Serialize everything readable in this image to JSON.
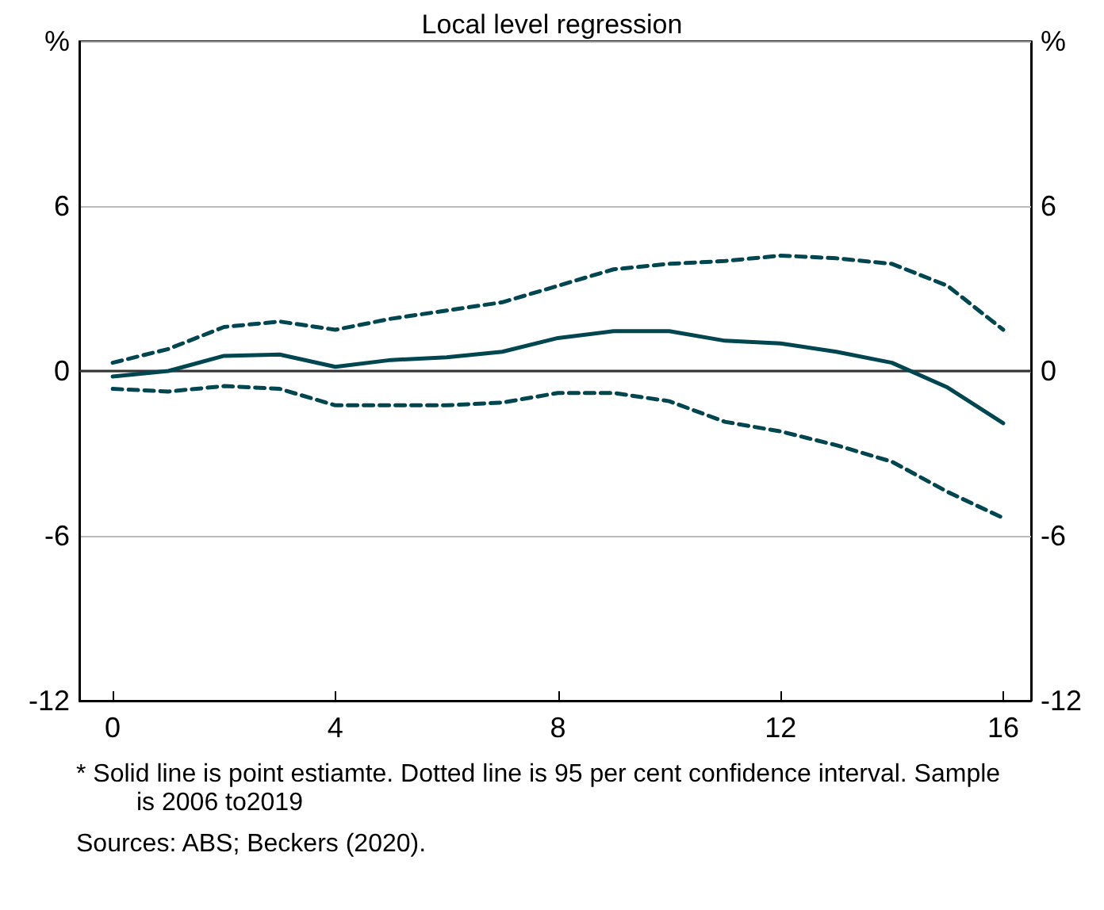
{
  "chart_data": {
    "type": "line",
    "title": "Local level regression",
    "x": [
      0,
      1,
      2,
      3,
      4,
      5,
      6,
      7,
      8,
      9,
      10,
      11,
      12,
      13,
      14,
      15,
      16
    ],
    "series": [
      {
        "color": "#004650",
        "line_style": "solid",
        "values": [
          -0.2,
          0,
          0.55,
          0.6,
          0.15,
          0.4,
          0.5,
          0.7,
          1.2,
          1.45,
          1.45,
          1.1,
          1.0,
          0.7,
          0.3,
          -0.6,
          -1.9
        ]
      },
      {
        "color": "#004650",
        "line_style": "dashed",
        "values": [
          0.3,
          0.8,
          1.6,
          1.8,
          1.5,
          1.9,
          2.2,
          2.5,
          3.1,
          3.7,
          3.9,
          4.0,
          4.2,
          4.1,
          3.9,
          3.1,
          1.5
        ]
      },
      {
        "color": "#004650",
        "line_style": "dashed",
        "values": [
          -0.65,
          -0.75,
          -0.55,
          -0.65,
          -1.25,
          -1.25,
          -1.25,
          -1.15,
          -0.8,
          -0.8,
          -1.1,
          -1.85,
          -2.2,
          -2.7,
          -3.3,
          -4.4,
          -5.35
        ]
      }
    ],
    "xlim": [
      -0.6,
      16.5
    ],
    "xticks": [
      0,
      4,
      8,
      12,
      16
    ],
    "ylim": [
      -12,
      12
    ],
    "yticks": [
      -12,
      -6,
      0,
      6,
      {
        "value": 12,
        "label": "%"
      }
    ],
    "y2lim": [
      -12,
      12
    ],
    "y2ticks": [
      -12,
      -6,
      0,
      6,
      {
        "value": 12,
        "label": "%"
      }
    ],
    "grid": "y",
    "marker": "none",
    "ref_lines": [
      {
        "axis": "y",
        "value": 0,
        "color": "#333333"
      }
    ],
    "annotations": [
      "*     Solid line is point estiamte. Dotted line is 95 per cent confidence interval. Sample is 2006 to2019",
      "Sources: ABS; Beckers (2020)."
    ]
  }
}
